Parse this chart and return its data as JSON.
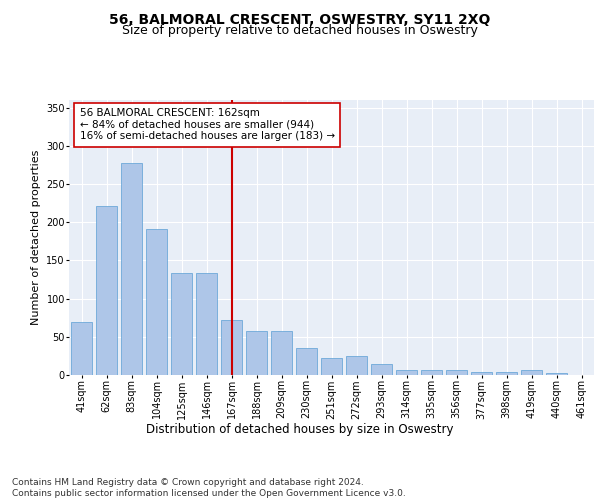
{
  "title": "56, BALMORAL CRESCENT, OSWESTRY, SY11 2XQ",
  "subtitle": "Size of property relative to detached houses in Oswestry",
  "xlabel": "Distribution of detached houses by size in Oswestry",
  "ylabel": "Number of detached properties",
  "categories": [
    "41sqm",
    "62sqm",
    "83sqm",
    "104sqm",
    "125sqm",
    "146sqm",
    "167sqm",
    "188sqm",
    "209sqm",
    "230sqm",
    "251sqm",
    "272sqm",
    "293sqm",
    "314sqm",
    "335sqm",
    "356sqm",
    "377sqm",
    "398sqm",
    "419sqm",
    "440sqm",
    "461sqm"
  ],
  "values": [
    69,
    221,
    277,
    191,
    134,
    134,
    72,
    57,
    57,
    35,
    22,
    25,
    14,
    6,
    6,
    6,
    4,
    4,
    6,
    2,
    0
  ],
  "bar_color": "#aec6e8",
  "bar_edge_color": "#5a9fd4",
  "reference_line_x": 6,
  "reference_line_color": "#cc0000",
  "annotation_text": "56 BALMORAL CRESCENT: 162sqm\n← 84% of detached houses are smaller (944)\n16% of semi-detached houses are larger (183) →",
  "annotation_box_color": "#ffffff",
  "annotation_box_edge_color": "#cc0000",
  "ylim": [
    0,
    360
  ],
  "yticks": [
    0,
    50,
    100,
    150,
    200,
    250,
    300,
    350
  ],
  "background_color": "#e8eef7",
  "footer_text": "Contains HM Land Registry data © Crown copyright and database right 2024.\nContains public sector information licensed under the Open Government Licence v3.0.",
  "title_fontsize": 10,
  "subtitle_fontsize": 9,
  "xlabel_fontsize": 8.5,
  "ylabel_fontsize": 8,
  "annotation_fontsize": 7.5,
  "footer_fontsize": 6.5,
  "tick_fontsize": 7
}
